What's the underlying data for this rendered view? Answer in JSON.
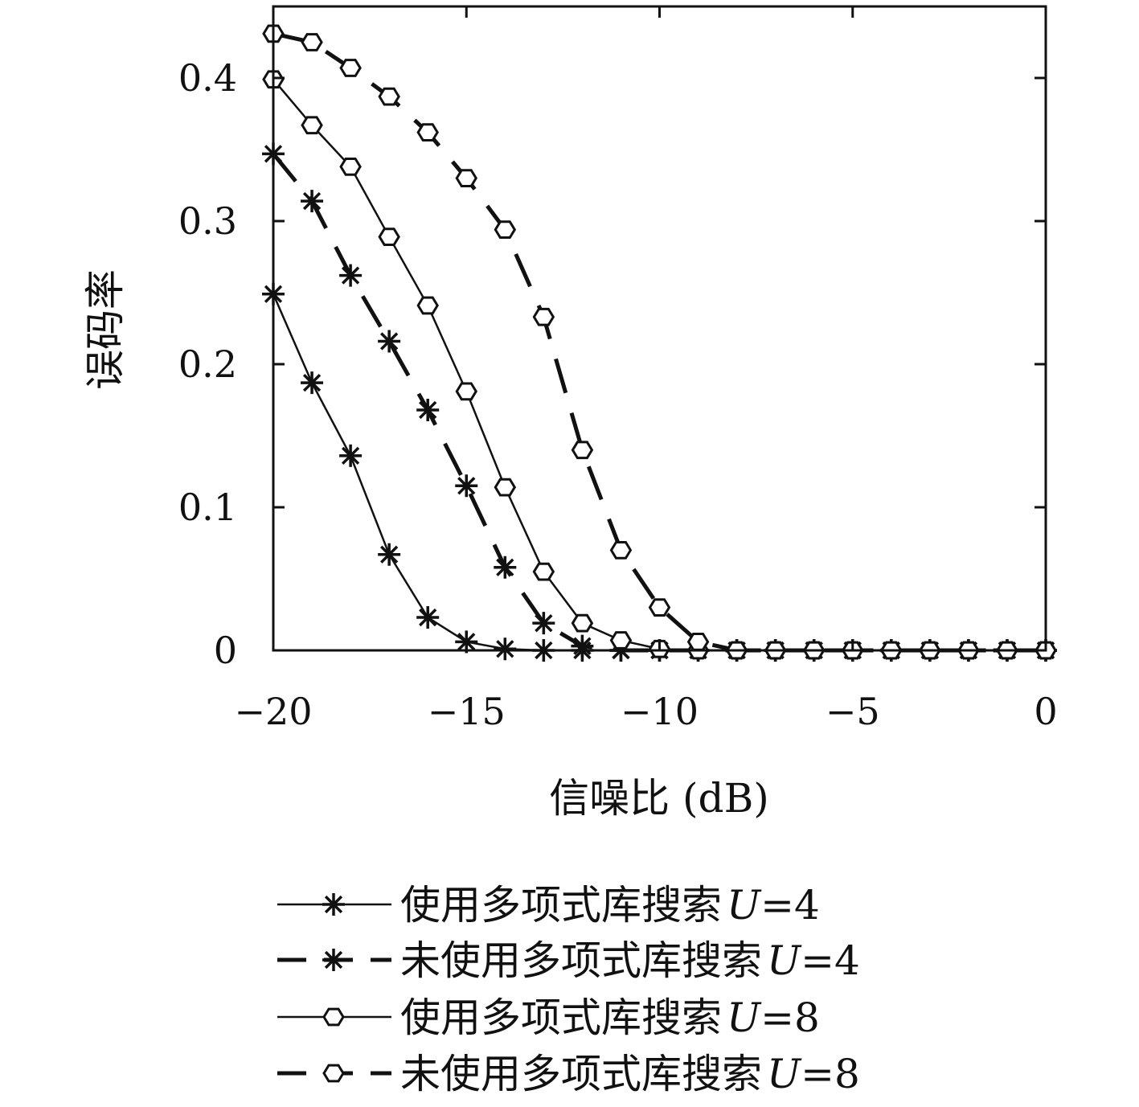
{
  "chart_data": {
    "type": "line",
    "title": "",
    "xlabel": "信噪比 (dB)",
    "ylabel": "误码率",
    "xlim": [
      -20,
      0
    ],
    "ylim": [
      0,
      0.45
    ],
    "xticks": [
      -20,
      -15,
      -10,
      -5,
      0
    ],
    "xtick_labels": [
      "−20",
      "−15",
      "−10",
      "−5",
      "0"
    ],
    "yticks": [
      0,
      0.1,
      0.2,
      0.3,
      0.4
    ],
    "ytick_labels": [
      "0",
      "0.1",
      "0.2",
      "0.3",
      "0.4"
    ],
    "grid": false,
    "legend_position": "bottom",
    "x": [
      -20,
      -19,
      -18,
      -17,
      -16,
      -15,
      -14,
      -13,
      -12,
      -11,
      -10,
      -9,
      -8,
      -7,
      -6,
      -5,
      -4,
      -3,
      -2,
      -1,
      0
    ],
    "series": [
      {
        "name": "使用多项式库搜索 U=4",
        "label_text": "使用多项式库搜索",
        "label_var": "U",
        "label_eq": "=4",
        "style": "solid",
        "marker": "star",
        "values": [
          0.249,
          0.187,
          0.136,
          0.067,
          0.023,
          0.006,
          0.001,
          0,
          0,
          0,
          0,
          0,
          0,
          0,
          0,
          0,
          0,
          0,
          0,
          0,
          0
        ]
      },
      {
        "name": "未使用多项式库搜索 U=4",
        "label_text": "未使用多项式库搜索",
        "label_var": "U",
        "label_eq": "=4",
        "style": "dashed",
        "marker": "star",
        "values": [
          0.347,
          0.314,
          0.262,
          0.216,
          0.168,
          0.115,
          0.058,
          0.019,
          0.003,
          0,
          0,
          0,
          0,
          0,
          0,
          0,
          0,
          0,
          0,
          0,
          0
        ]
      },
      {
        "name": "使用多项式库搜索 U=8",
        "label_text": "使用多项式库搜索",
        "label_var": "U",
        "label_eq": "=8",
        "style": "solid",
        "marker": "hexagon",
        "values": [
          0.399,
          0.367,
          0.338,
          0.289,
          0.241,
          0.181,
          0.114,
          0.055,
          0.019,
          0.007,
          0.001,
          0,
          0,
          0,
          0,
          0,
          0,
          0,
          0,
          0,
          0
        ]
      },
      {
        "name": "未使用多项式库搜索 U=8",
        "label_text": "未使用多项式库搜索",
        "label_var": "U",
        "label_eq": "=8",
        "style": "dashed",
        "marker": "hexagon",
        "values": [
          0.431,
          0.425,
          0.407,
          0.387,
          0.362,
          0.33,
          0.294,
          0.233,
          0.14,
          0.07,
          0.03,
          0.006,
          0,
          0,
          0,
          0,
          0,
          0,
          0,
          0,
          0
        ]
      }
    ]
  },
  "colors": {
    "line": "#111111",
    "background": "#ffffff"
  }
}
